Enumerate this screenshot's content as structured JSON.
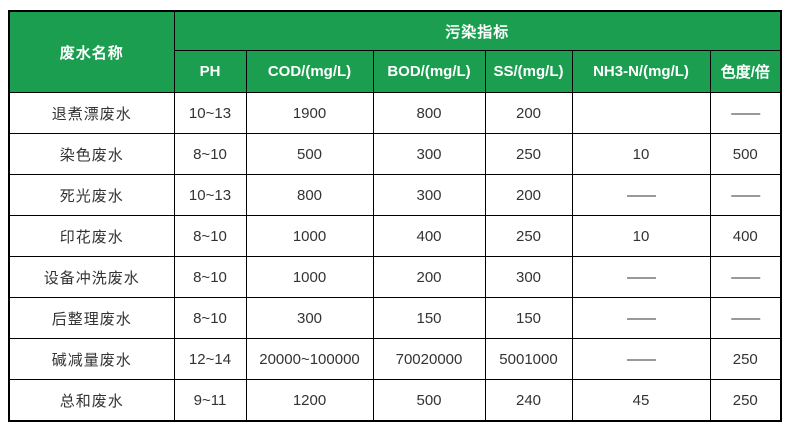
{
  "colors": {
    "header_bg": "#1b9e50",
    "header_text": "#ffffff",
    "body_text": "#333333",
    "border": "#000000"
  },
  "table": {
    "corner_header": "废水名称",
    "group_header": "污染指标",
    "columns": [
      "PH",
      "COD/(mg/L)",
      "BOD/(mg/L)",
      "SS/(mg/L)",
      "NH3-N/(mg/L)",
      "色度/倍"
    ],
    "rows": [
      {
        "name": "退煮漂废水",
        "values": [
          "10~13",
          "1900",
          "800",
          "200",
          "",
          "——"
        ]
      },
      {
        "name": "染色废水",
        "values": [
          "8~10",
          "500",
          "300",
          "250",
          "10",
          "500"
        ]
      },
      {
        "name": "死光废水",
        "values": [
          "10~13",
          "800",
          "300",
          "200",
          "——",
          "——"
        ]
      },
      {
        "name": "印花废水",
        "values": [
          "8~10",
          "1000",
          "400",
          "250",
          "10",
          "400"
        ]
      },
      {
        "name": "设备冲洗废水",
        "values": [
          "8~10",
          "1000",
          "200",
          "300",
          "——",
          "——"
        ]
      },
      {
        "name": "后整理废水",
        "values": [
          "8~10",
          "300",
          "150",
          "150",
          "——",
          "——"
        ]
      },
      {
        "name": "碱减量废水",
        "values": [
          "12~14",
          "20000~100000",
          "70020000",
          "5001000",
          "——",
          "250"
        ]
      },
      {
        "name": "总和废水",
        "values": [
          "9~11",
          "1200",
          "500",
          "240",
          "45",
          "250"
        ]
      }
    ]
  }
}
